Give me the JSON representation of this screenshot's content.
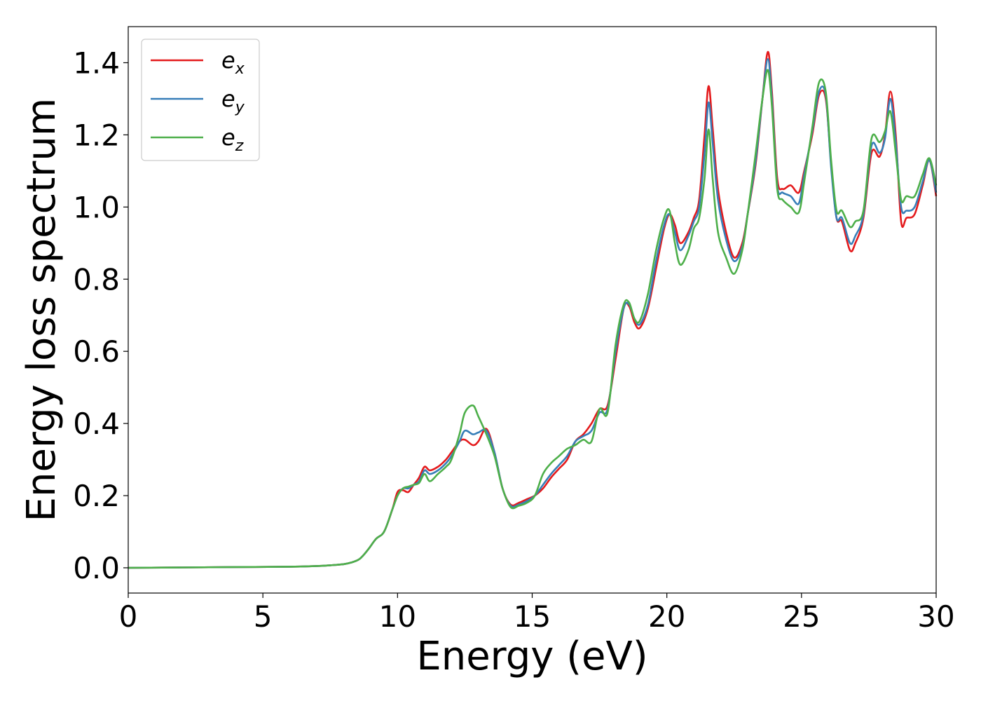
{
  "chart_data": {
    "type": "line",
    "title": "",
    "xlabel": "Energy (eV)",
    "ylabel": "Energy loss spectrum",
    "xlim": [
      0,
      30
    ],
    "ylim": [
      -0.07,
      1.5
    ],
    "xticks": [
      0,
      5,
      10,
      15,
      20,
      25,
      30
    ],
    "xtick_labels": [
      "0",
      "5",
      "10",
      "15",
      "20",
      "25",
      "30"
    ],
    "yticks": [
      0.0,
      0.2,
      0.4,
      0.6,
      0.8,
      1.0,
      1.2,
      1.4
    ],
    "ytick_labels": [
      "0.0",
      "0.2",
      "0.4",
      "0.6",
      "0.8",
      "1.0",
      "1.2",
      "1.4"
    ],
    "grid": false,
    "legend_position": "top-left",
    "series": [
      {
        "name": "e_x",
        "legend_base": "e",
        "legend_sub": "x",
        "color": "#e41a1c",
        "x": [
          0,
          2,
          4,
          6,
          7,
          7.5,
          8,
          8.3,
          8.6,
          8.9,
          9.2,
          9.5,
          9.8,
          10.0,
          10.2,
          10.4,
          10.6,
          10.8,
          11.0,
          11.2,
          11.5,
          11.8,
          12.0,
          12.3,
          12.5,
          12.8,
          13.0,
          13.3,
          13.6,
          13.9,
          14.2,
          14.5,
          14.8,
          15.1,
          15.4,
          15.7,
          16.0,
          16.3,
          16.6,
          16.9,
          17.2,
          17.5,
          17.8,
          18.1,
          18.4,
          18.6,
          18.8,
          19.0,
          19.3,
          19.6,
          19.9,
          20.1,
          20.3,
          20.5,
          20.8,
          21.0,
          21.2,
          21.4,
          21.55,
          21.7,
          21.9,
          22.2,
          22.5,
          22.8,
          23.0,
          23.3,
          23.55,
          23.75,
          23.9,
          24.1,
          24.3,
          24.6,
          24.9,
          25.1,
          25.4,
          25.65,
          25.9,
          26.1,
          26.3,
          26.5,
          26.8,
          27.0,
          27.3,
          27.6,
          27.9,
          28.1,
          28.3,
          28.5,
          28.7,
          28.9,
          29.2,
          29.5,
          29.75,
          30.0
        ],
        "y": [
          0.0,
          0.001,
          0.002,
          0.003,
          0.005,
          0.007,
          0.01,
          0.015,
          0.025,
          0.05,
          0.08,
          0.1,
          0.16,
          0.21,
          0.215,
          0.21,
          0.23,
          0.25,
          0.28,
          0.27,
          0.28,
          0.3,
          0.32,
          0.35,
          0.355,
          0.34,
          0.35,
          0.385,
          0.32,
          0.22,
          0.175,
          0.18,
          0.19,
          0.2,
          0.22,
          0.25,
          0.275,
          0.3,
          0.35,
          0.37,
          0.4,
          0.44,
          0.45,
          0.58,
          0.72,
          0.725,
          0.68,
          0.665,
          0.72,
          0.83,
          0.94,
          0.98,
          0.95,
          0.9,
          0.93,
          0.97,
          1.02,
          1.2,
          1.335,
          1.22,
          1.05,
          0.93,
          0.86,
          0.9,
          0.98,
          1.12,
          1.3,
          1.43,
          1.32,
          1.08,
          1.05,
          1.06,
          1.04,
          1.1,
          1.2,
          1.31,
          1.3,
          1.12,
          0.97,
          0.96,
          0.88,
          0.9,
          0.97,
          1.15,
          1.14,
          1.2,
          1.32,
          1.2,
          0.96,
          0.97,
          0.98,
          1.06,
          1.13,
          1.03
        ]
      },
      {
        "name": "e_y",
        "legend_base": "e",
        "legend_sub": "y",
        "color": "#377eb8",
        "x": [
          0,
          2,
          4,
          6,
          7,
          7.5,
          8,
          8.3,
          8.6,
          8.9,
          9.2,
          9.5,
          9.8,
          10.0,
          10.2,
          10.4,
          10.6,
          10.8,
          11.0,
          11.2,
          11.5,
          11.8,
          12.0,
          12.3,
          12.5,
          12.8,
          13.0,
          13.3,
          13.6,
          13.9,
          14.2,
          14.5,
          14.8,
          15.1,
          15.4,
          15.7,
          16.0,
          16.3,
          16.6,
          16.9,
          17.2,
          17.5,
          17.8,
          18.1,
          18.4,
          18.6,
          18.8,
          19.0,
          19.3,
          19.6,
          19.9,
          20.1,
          20.3,
          20.5,
          20.8,
          21.0,
          21.2,
          21.4,
          21.55,
          21.7,
          21.9,
          22.2,
          22.5,
          22.8,
          23.0,
          23.3,
          23.55,
          23.75,
          23.9,
          24.1,
          24.3,
          24.6,
          24.9,
          25.1,
          25.4,
          25.65,
          25.9,
          26.1,
          26.3,
          26.5,
          26.8,
          27.0,
          27.3,
          27.6,
          27.9,
          28.1,
          28.3,
          28.5,
          28.7,
          28.9,
          29.2,
          29.5,
          29.75,
          30.0
        ],
        "y": [
          0.0,
          0.001,
          0.002,
          0.003,
          0.005,
          0.007,
          0.01,
          0.015,
          0.025,
          0.05,
          0.08,
          0.1,
          0.16,
          0.2,
          0.22,
          0.22,
          0.23,
          0.24,
          0.27,
          0.26,
          0.27,
          0.29,
          0.31,
          0.35,
          0.38,
          0.37,
          0.375,
          0.38,
          0.32,
          0.22,
          0.172,
          0.175,
          0.185,
          0.2,
          0.23,
          0.26,
          0.285,
          0.31,
          0.35,
          0.365,
          0.38,
          0.43,
          0.44,
          0.6,
          0.72,
          0.73,
          0.69,
          0.675,
          0.73,
          0.85,
          0.95,
          0.98,
          0.93,
          0.88,
          0.92,
          0.96,
          1.0,
          1.15,
          1.29,
          1.18,
          1.02,
          0.91,
          0.85,
          0.89,
          0.98,
          1.13,
          1.3,
          1.41,
          1.3,
          1.06,
          1.04,
          1.03,
          1.01,
          1.09,
          1.21,
          1.32,
          1.31,
          1.11,
          0.97,
          0.97,
          0.9,
          0.92,
          0.98,
          1.17,
          1.15,
          1.19,
          1.3,
          1.18,
          1.0,
          0.99,
          1.0,
          1.07,
          1.13,
          1.04
        ]
      },
      {
        "name": "e_z",
        "legend_base": "e",
        "legend_sub": "z",
        "color": "#4daf4a",
        "x": [
          0,
          2,
          4,
          6,
          7,
          7.5,
          8,
          8.3,
          8.6,
          8.9,
          9.2,
          9.5,
          9.8,
          10.0,
          10.2,
          10.4,
          10.6,
          10.8,
          11.0,
          11.2,
          11.5,
          11.8,
          12.0,
          12.3,
          12.5,
          12.8,
          13.0,
          13.3,
          13.6,
          13.9,
          14.2,
          14.5,
          14.8,
          15.1,
          15.4,
          15.7,
          16.0,
          16.3,
          16.6,
          16.9,
          17.2,
          17.5,
          17.8,
          18.1,
          18.4,
          18.6,
          18.8,
          19.0,
          19.3,
          19.6,
          19.9,
          20.1,
          20.3,
          20.5,
          20.8,
          21.0,
          21.2,
          21.4,
          21.55,
          21.7,
          21.9,
          22.2,
          22.5,
          22.8,
          23.0,
          23.3,
          23.55,
          23.75,
          23.9,
          24.1,
          24.3,
          24.6,
          24.9,
          25.1,
          25.4,
          25.65,
          25.9,
          26.1,
          26.3,
          26.5,
          26.8,
          27.0,
          27.3,
          27.6,
          27.9,
          28.1,
          28.3,
          28.5,
          28.7,
          28.9,
          29.2,
          29.5,
          29.75,
          30.0
        ],
        "y": [
          0.0,
          0.001,
          0.002,
          0.003,
          0.005,
          0.007,
          0.01,
          0.015,
          0.025,
          0.05,
          0.08,
          0.1,
          0.16,
          0.2,
          0.22,
          0.225,
          0.23,
          0.235,
          0.26,
          0.24,
          0.26,
          0.28,
          0.3,
          0.37,
          0.43,
          0.45,
          0.42,
          0.37,
          0.31,
          0.22,
          0.168,
          0.172,
          0.18,
          0.2,
          0.26,
          0.29,
          0.31,
          0.33,
          0.34,
          0.355,
          0.35,
          0.44,
          0.43,
          0.62,
          0.73,
          0.735,
          0.69,
          0.685,
          0.76,
          0.88,
          0.97,
          0.99,
          0.9,
          0.84,
          0.88,
          0.94,
          0.97,
          1.08,
          1.215,
          1.08,
          0.93,
          0.86,
          0.815,
          0.88,
          0.98,
          1.15,
          1.3,
          1.38,
          1.28,
          1.05,
          1.02,
          1.0,
          0.985,
          1.07,
          1.22,
          1.345,
          1.32,
          1.13,
          0.99,
          0.99,
          0.945,
          0.96,
          0.99,
          1.19,
          1.18,
          1.21,
          1.265,
          1.15,
          1.02,
          1.03,
          1.03,
          1.09,
          1.135,
          1.06
        ]
      }
    ]
  }
}
